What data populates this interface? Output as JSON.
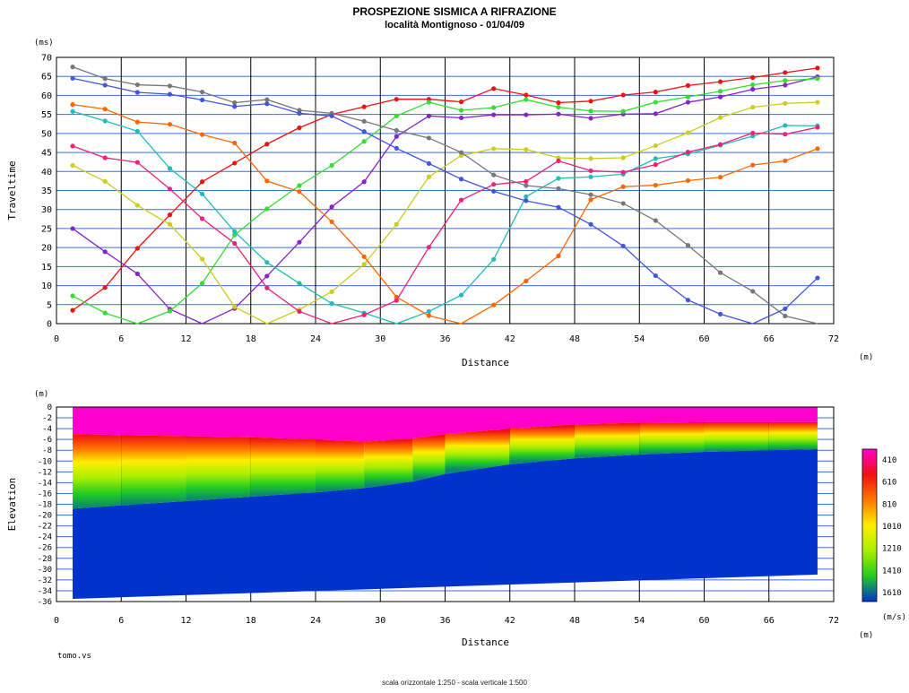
{
  "title": "PROSPEZIONE SISMICA A RIFRAZIONE",
  "subtitle": "località Montignoso - 01/04/09",
  "file_label": "tomo.vs",
  "footer": "scala orizzontale 1:250 - scala verticale 1:500",
  "chart_data": [
    {
      "type": "line",
      "name": "traveltime",
      "xlabel": "Distance",
      "ylabel": "Traveltime",
      "x_unit": "(m)",
      "y_unit": "(ms)",
      "xlim": [
        0,
        72
      ],
      "ylim": [
        0,
        70
      ],
      "xticks": [
        0,
        6,
        12,
        18,
        24,
        30,
        36,
        42,
        48,
        54,
        60,
        66,
        72
      ],
      "yticks": [
        0,
        5,
        10,
        15,
        20,
        25,
        30,
        35,
        40,
        45,
        50,
        55,
        60,
        65,
        70
      ],
      "grid": true,
      "geophones_x": [
        1.5,
        4.5,
        7.5,
        10.5,
        13.5,
        16.5,
        19.5,
        22.5,
        25.5,
        28.5,
        31.5,
        34.5,
        37.5,
        40.5,
        43.5,
        46.5,
        49.5,
        52.5,
        55.5,
        58.5,
        61.5,
        64.5,
        67.5,
        70.5
      ],
      "series": [
        {
          "color": "#ee1111",
          "values": [
            3.5,
            9.5,
            19.8,
            28.6,
            37.3,
            42.2,
            47.2,
            51.5,
            55,
            57,
            59,
            59,
            58.3,
            61.8,
            60.1,
            58.1,
            58.5,
            60.1,
            60.9,
            62.6,
            63.6,
            64.7,
            66,
            67.2
          ]
        },
        {
          "color": "#8822cc",
          "values": [
            25,
            18.9,
            13.1,
            3.8,
            0,
            4,
            12.5,
            21.4,
            30.7,
            37.3,
            49.2,
            54.6,
            54.1,
            54.9,
            54.9,
            55.1,
            54,
            55.1,
            55.2,
            58.2,
            59.6,
            61.6,
            62.7,
            64.9
          ]
        },
        {
          "color": "#33dd33",
          "values": [
            7.3,
            2.8,
            0,
            3.3,
            10.6,
            23.3,
            30.2,
            36.3,
            41.6,
            47.9,
            54.6,
            58.2,
            56.1,
            56.8,
            58.9,
            56.9,
            55.9,
            55.8,
            58.2,
            59.6,
            61.1,
            62.8,
            63.9,
            64.4
          ]
        },
        {
          "color": "#cccc22",
          "values": [
            41.6,
            37.4,
            31.1,
            26.1,
            17,
            4.4,
            0,
            3.7,
            8.4,
            15.6,
            26.1,
            38.6,
            44.2,
            46,
            45.8,
            43.6,
            43.4,
            43.6,
            46.8,
            50.2,
            54.2,
            56.9,
            57.9,
            58.2
          ]
        },
        {
          "color": "#ff6600",
          "values": [
            57.6,
            56.4,
            53,
            52.4,
            49.7,
            47.5,
            37.5,
            34.7,
            26.8,
            17.6,
            7,
            2.1,
            0,
            4.9,
            11.2,
            17.8,
            32.6,
            36,
            36.4,
            37.6,
            38.5,
            41.7,
            42.8,
            46
          ]
        },
        {
          "color": "#22bbbb",
          "values": [
            55.8,
            53.3,
            50.6,
            40.8,
            34.1,
            24.2,
            16.1,
            10.6,
            5.3,
            2.8,
            0,
            3.2,
            7.5,
            16.9,
            33.4,
            38.2,
            38.6,
            39.3,
            43.4,
            44.6,
            46.9,
            49.3,
            52.1,
            52
          ]
        },
        {
          "color": "#ee2277",
          "values": [
            46.7,
            43.6,
            42.4,
            35.4,
            27.6,
            21.1,
            9.4,
            3.2,
            0,
            2.3,
            6.1,
            20.1,
            32.5,
            36.6,
            37.4,
            42.8,
            40.2,
            39.8,
            41.8,
            45.1,
            47.1,
            50.1,
            49.8,
            51.6
          ]
        },
        {
          "color": "#777777",
          "values": [
            67.5,
            64.4,
            62.8,
            62.5,
            60.9,
            58.1,
            58.9,
            56.1,
            55.3,
            53.2,
            50.8,
            48.8,
            45,
            39.1,
            36.3,
            35.5,
            33.9,
            31.6,
            27.1,
            20.6,
            13.4,
            8.5,
            2,
            0
          ]
        },
        {
          "color": "#4455dd",
          "values": [
            64.5,
            62.7,
            60.8,
            60.3,
            58.8,
            57.1,
            57.8,
            55.3,
            54.6,
            50.5,
            46.1,
            42.1,
            38,
            34.8,
            32.3,
            30.6,
            26.1,
            20.4,
            12.6,
            6.2,
            2.5,
            0,
            3.9,
            12
          ]
        }
      ]
    },
    {
      "type": "heatmap",
      "name": "velocity-section",
      "xlabel": "Distance",
      "ylabel": "Elevation",
      "x_unit": "(m)",
      "y_unit": "(m)",
      "xlim": [
        0,
        72
      ],
      "ylim": [
        -36,
        0
      ],
      "xticks": [
        0,
        6,
        12,
        18,
        24,
        30,
        36,
        42,
        48,
        54,
        60,
        66,
        72
      ],
      "yticks": [
        0,
        -2,
        -4,
        -6,
        -8,
        -10,
        -12,
        -14,
        -16,
        -18,
        -20,
        -22,
        -24,
        -26,
        -28,
        -30,
        -32,
        -34,
        -36
      ],
      "grid": true,
      "legend": {
        "unit": "(m/s)",
        "labels": [
          "410",
          "610",
          "810",
          "1010",
          "1210",
          "1410",
          "1610"
        ],
        "colors": [
          "#ff00cc",
          "#ee1111",
          "#ff7700",
          "#ffee00",
          "#aaee00",
          "#22cc22",
          "#0033cc"
        ]
      },
      "model_x": [
        1.5,
        70.5
      ],
      "bottom_depth": [
        -35.5,
        -31
      ],
      "interfaces": {
        "x": [
          1.5,
          6,
          12,
          18,
          24,
          28.5,
          33,
          36,
          42,
          48,
          54,
          60,
          66,
          70.5
        ],
        "top": [
          -5,
          -5.2,
          -5.4,
          -5.6,
          -6,
          -6.4,
          -5.8,
          -5,
          -4,
          -3.2,
          -2.9,
          -2.8,
          -2.8,
          -2.8
        ],
        "mid": [
          -10,
          -10.3,
          -10.8,
          -11.4,
          -12,
          -12.2,
          -11.8,
          -11,
          -9,
          -7.5,
          -6.8,
          -6.3,
          -6,
          -5.9
        ],
        "base": [
          -18.8,
          -18.2,
          -17.4,
          -16.6,
          -15.8,
          -15,
          -13.8,
          -12.4,
          -10.6,
          -9.5,
          -8.8,
          -8.3,
          -8,
          -7.8
        ]
      }
    }
  ]
}
